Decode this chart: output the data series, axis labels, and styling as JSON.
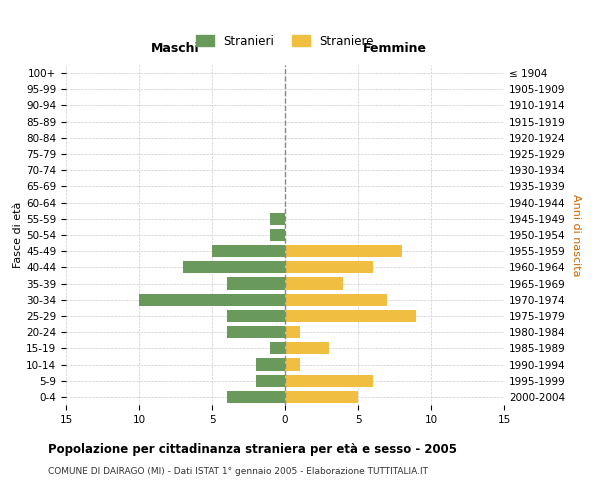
{
  "age_groups": [
    "0-4",
    "5-9",
    "10-14",
    "15-19",
    "20-24",
    "25-29",
    "30-34",
    "35-39",
    "40-44",
    "45-49",
    "50-54",
    "55-59",
    "60-64",
    "65-69",
    "70-74",
    "75-79",
    "80-84",
    "85-89",
    "90-94",
    "95-99",
    "100+"
  ],
  "birth_years": [
    "2000-2004",
    "1995-1999",
    "1990-1994",
    "1985-1989",
    "1980-1984",
    "1975-1979",
    "1970-1974",
    "1965-1969",
    "1960-1964",
    "1955-1959",
    "1950-1954",
    "1945-1949",
    "1940-1944",
    "1935-1939",
    "1930-1934",
    "1925-1929",
    "1920-1924",
    "1915-1919",
    "1910-1914",
    "1905-1909",
    "≤ 1904"
  ],
  "maschi": [
    4,
    2,
    2,
    1,
    4,
    4,
    10,
    4,
    7,
    5,
    1,
    1,
    0,
    0,
    0,
    0,
    0,
    0,
    0,
    0,
    0
  ],
  "femmine": [
    5,
    6,
    1,
    3,
    1,
    9,
    7,
    4,
    6,
    8,
    0,
    0,
    0,
    0,
    0,
    0,
    0,
    0,
    0,
    0,
    0
  ],
  "maschi_color": "#6a9a5b",
  "femmine_color": "#f0be40",
  "title": "Popolazione per cittadinanza straniera per età e sesso - 2005",
  "subtitle": "COMUNE DI DAIRAGO (MI) - Dati ISTAT 1° gennaio 2005 - Elaborazione TUTTITALIA.IT",
  "label_maschi": "Maschi",
  "label_femmine": "Femmine",
  "ylabel_left": "Fasce di età",
  "ylabel_right": "Anni di nascita",
  "legend_maschi": "Stranieri",
  "legend_femmine": "Straniere",
  "xlim": 15,
  "background_color": "#ffffff",
  "grid_color": "#cccccc",
  "bar_height": 0.75
}
